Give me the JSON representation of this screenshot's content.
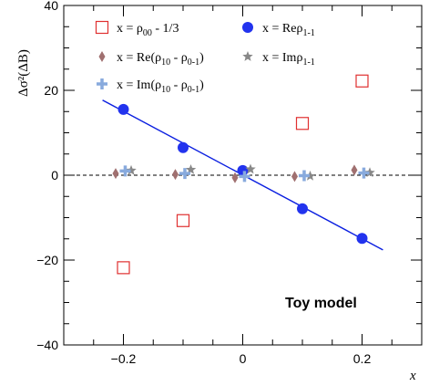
{
  "chart_data": {
    "type": "scatter",
    "xlabel": "x",
    "ylabel": "Δσ²(ΔB)",
    "xlim": [
      -0.3,
      0.3
    ],
    "ylim": [
      -40,
      40
    ],
    "x_ticks": [
      "−0.2",
      "0",
      "0.2"
    ],
    "y_ticks": [
      "−40",
      "−20",
      "0",
      "20",
      "40"
    ],
    "annotation": "Toy model",
    "legend_position": "top",
    "colors": {
      "red": "#e03030",
      "blue": "#2233ee",
      "brown": "#a07070",
      "gray": "#888888",
      "lightblue": "#88aadd",
      "line": "#0a1ee0"
    },
    "series": [
      {
        "name": "x = ρ00 - 1/3",
        "marker": "open-square",
        "points": [
          [
            -0.2,
            -21.8
          ],
          [
            -0.1,
            -10.7
          ],
          [
            0.1,
            12.2
          ],
          [
            0.2,
            22.2
          ]
        ]
      },
      {
        "name": "x = Reρ1-1",
        "marker": "filled-circle",
        "points": [
          [
            -0.2,
            15.5
          ],
          [
            -0.1,
            6.5
          ],
          [
            0.0,
            1.1
          ],
          [
            0.1,
            -7.9
          ],
          [
            0.2,
            -14.9
          ]
        ]
      },
      {
        "name": "x = Re(ρ10 - ρ0-1)",
        "marker": "diamond",
        "points": [
          [
            -0.213,
            0.4
          ],
          [
            -0.113,
            0.2
          ],
          [
            -0.013,
            -0.6
          ],
          [
            0.087,
            -0.3
          ],
          [
            0.187,
            1.2
          ]
        ]
      },
      {
        "name": "x = Imρ1-1",
        "marker": "star",
        "points": [
          [
            -0.187,
            1.1
          ],
          [
            -0.087,
            1.3
          ],
          [
            0.013,
            1.4
          ],
          [
            0.113,
            -0.2
          ],
          [
            0.213,
            0.6
          ]
        ]
      },
      {
        "name": "x = Im(ρ10 - ρ0-1)",
        "marker": "plus",
        "points": [
          [
            -0.197,
            1.0
          ],
          [
            -0.097,
            0.4
          ],
          [
            0.003,
            -0.3
          ],
          [
            0.103,
            -0.1
          ],
          [
            0.203,
            0.5
          ]
        ]
      }
    ],
    "fit_line": {
      "x": [
        -0.235,
        0.235
      ],
      "y": [
        17.7,
        -17.6
      ]
    }
  },
  "legend": [
    {
      "main": "x = ρ",
      "sub": "00",
      "tail": " - 1/3"
    },
    {
      "main": "x = Reρ",
      "sub": "1-1",
      "tail": ""
    },
    {
      "main": "x = Re(ρ",
      "sub": "10",
      "tail": " - ρ",
      "sub2": "0-1",
      "tail2": ")"
    },
    {
      "main": "x = Imρ",
      "sub": "1-1",
      "tail": ""
    },
    {
      "main": "x = Im(ρ",
      "sub": "10",
      "tail": " - ρ",
      "sub2": "0-1",
      "tail2": ")"
    }
  ]
}
